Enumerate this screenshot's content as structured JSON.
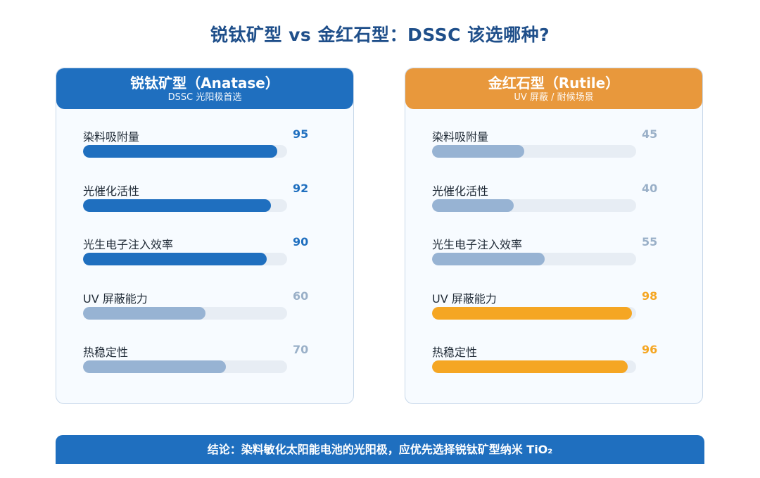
{
  "title": "锐钛矿型 vs 金红石型：DSSC 该选哪种?",
  "colors": {
    "strong_blue": "#1f6fbf",
    "muted_blue": "#97b3d3",
    "orange_head": "#e8983c",
    "orange_bar": "#f5a623",
    "muted_value": "#9ab0c8"
  },
  "chart_data": [
    {
      "type": "bar",
      "orientation": "horizontal",
      "title": "锐钛矿型（Anatase）",
      "subtitle": "DSSC 光阳极首选",
      "categories": [
        "染料吸附量",
        "光催化活性",
        "光生电子注入效率",
        "UV 屏蔽能力",
        "热稳定性"
      ],
      "values": [
        95,
        92,
        90,
        60,
        70
      ],
      "highlight": [
        true,
        true,
        true,
        false,
        false
      ],
      "xlim": [
        0,
        100
      ]
    },
    {
      "type": "bar",
      "orientation": "horizontal",
      "title": "金红石型（Rutile）",
      "subtitle": "UV 屏蔽 / 耐候场景",
      "categories": [
        "染料吸附量",
        "光催化活性",
        "光生电子注入效率",
        "UV 屏蔽能力",
        "热稳定性"
      ],
      "values": [
        45,
        40,
        55,
        98,
        96
      ],
      "highlight": [
        false,
        false,
        false,
        true,
        true
      ],
      "xlim": [
        0,
        100
      ]
    }
  ],
  "conclusion": "结论：染料敏化太阳能电池的光阳极，应优先选择锐钛矿型纳米 TiO₂"
}
